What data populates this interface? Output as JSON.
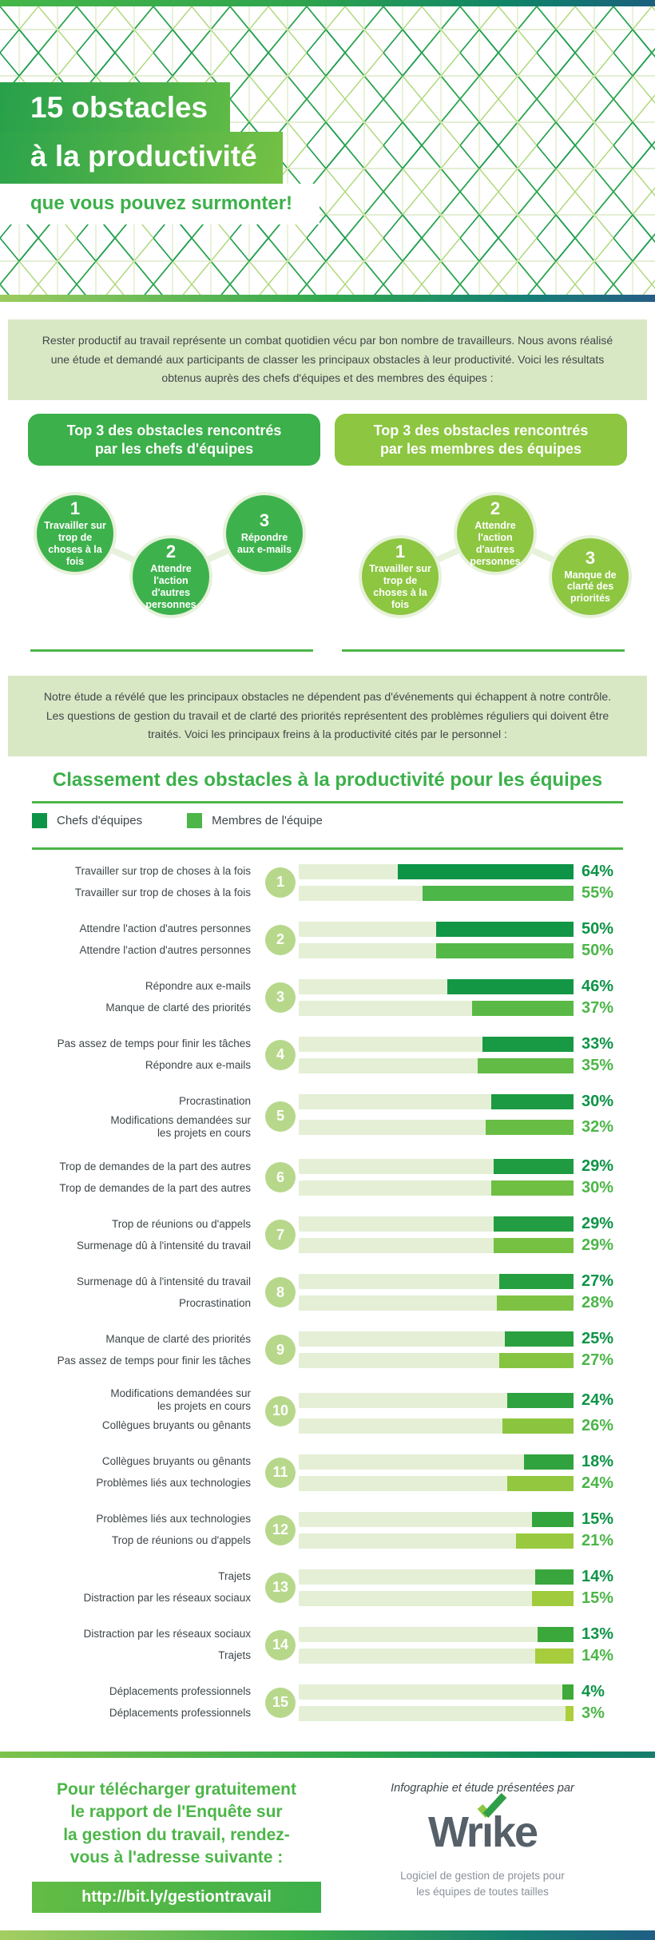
{
  "header": {
    "title_lines": [
      "15 obstacles",
      "à la productivité"
    ],
    "subtitle": "que vous pouvez surmonter!"
  },
  "intro_text": "Rester productif au travail représente un combat quotidien vécu par bon nombre de travailleurs. Nous avons réalisé une étude et demandé aux participants de classer les principaux obstacles à leur productivité. Voici les résultats obtenus auprès des chefs d'équipes et des membres des équipes :",
  "top3_chefs": {
    "heading_lines": [
      "Top 3 des obstacles rencontrés",
      "par les chefs d'équipes"
    ],
    "items": [
      {
        "rank": "1",
        "label": "Travailler sur trop de choses à la fois"
      },
      {
        "rank": "2",
        "label": "Attendre l'action d'autres personnes"
      },
      {
        "rank": "3",
        "label": "Répondre aux e-mails"
      }
    ]
  },
  "top3_membres": {
    "heading_lines": [
      "Top 3 des obstacles rencontrés",
      "par les membres des équipes"
    ],
    "items": [
      {
        "rank": "1",
        "label": "Travailler sur trop de choses à la fois"
      },
      {
        "rank": "2",
        "label": "Attendre l'action d'autres personnes"
      },
      {
        "rank": "3",
        "label": "Manque de clarté des priorités"
      }
    ]
  },
  "note_text": "Notre étude a révélé que les principaux obstacles ne dépendent pas d'événements qui échappent à notre contrôle. Les questions de gestion du travail et de clarté des priorités représentent des problèmes réguliers qui doivent être traités. Voici les principaux freins à la productivité cités par le personnel :",
  "chart_data": {
    "type": "bar",
    "orientation": "horizontal",
    "bar_anchor": "right",
    "value_axis_max": 100,
    "value_suffix": "%",
    "title": "Classement des obstacles à la productivité pour les équipes",
    "legend": [
      {
        "label": "Chefs d'équipes",
        "color": "#0E9447"
      },
      {
        "label": "Membres de l'équipe",
        "color": "#4CB648"
      }
    ],
    "colors": {
      "track": "#E4EFD6",
      "chef_top": "#0D9447",
      "chef_bottom": "#3FA93A",
      "membre_top": "#4CB648",
      "membre_bottom": "#AECE3B",
      "chef_pct_text": "#0E9447",
      "membre_pct_text": "#4CB648",
      "badge": "#B7D88B"
    },
    "rows": [
      {
        "rank": "1",
        "chef_label": "Travailler sur trop de choses à la fois",
        "chef_value": 64,
        "membre_label": "Travailler sur trop de choses à la fois",
        "membre_value": 55
      },
      {
        "rank": "2",
        "chef_label": "Attendre l'action d'autres personnes",
        "chef_value": 50,
        "membre_label": "Attendre l'action d'autres personnes",
        "membre_value": 50
      },
      {
        "rank": "3",
        "chef_label": "Répondre aux e-mails",
        "chef_value": 46,
        "membre_label": "Manque de clarté des priorités",
        "membre_value": 37
      },
      {
        "rank": "4",
        "chef_label": "Pas assez de temps pour finir les tâches",
        "chef_value": 33,
        "membre_label": "Répondre aux e-mails",
        "membre_value": 35
      },
      {
        "rank": "5",
        "chef_label": "Procrastination",
        "chef_value": 30,
        "membre_label": "Modifications demandées sur\nles projets en cours",
        "membre_value": 32
      },
      {
        "rank": "6",
        "chef_label": "Trop de demandes de la part des autres",
        "chef_value": 29,
        "membre_label": "Trop de demandes de la part des autres",
        "membre_value": 30
      },
      {
        "rank": "7",
        "chef_label": "Trop de réunions ou d'appels",
        "chef_value": 29,
        "membre_label": "Surmenage dû à l'intensité du travail",
        "membre_value": 29
      },
      {
        "rank": "8",
        "chef_label": "Surmenage dû à l'intensité du travail",
        "chef_value": 27,
        "membre_label": "Procrastination",
        "membre_value": 28
      },
      {
        "rank": "9",
        "chef_label": "Manque de clarté des priorités",
        "chef_value": 25,
        "membre_label": "Pas assez de temps pour finir les tâches",
        "membre_value": 27
      },
      {
        "rank": "10",
        "chef_label": "Modifications demandées sur\nles projets en cours",
        "chef_value": 24,
        "membre_label": "Collègues bruyants ou gênants",
        "membre_value": 26
      },
      {
        "rank": "11",
        "chef_label": "Collègues bruyants ou gênants",
        "chef_value": 18,
        "membre_label": "Problèmes liés aux technologies",
        "membre_value": 24
      },
      {
        "rank": "12",
        "chef_label": "Problèmes liés aux technologies",
        "chef_value": 15,
        "membre_label": "Trop de réunions ou d'appels",
        "membre_value": 21
      },
      {
        "rank": "13",
        "chef_label": "Trajets",
        "chef_value": 14,
        "membre_label": "Distraction par les réseaux sociaux",
        "membre_value": 15
      },
      {
        "rank": "14",
        "chef_label": "Distraction par les réseaux sociaux",
        "chef_value": 13,
        "membre_label": "Trajets",
        "membre_value": 14
      },
      {
        "rank": "15",
        "chef_label": "Déplacements professionnels",
        "chef_value": 4,
        "membre_label": "Déplacements professionnels",
        "membre_value": 3
      }
    ]
  },
  "footer": {
    "cta_lines": [
      "Pour télécharger gratuitement",
      "le rapport de l'Enquête sur",
      "la gestion du travail, rendez-",
      "vous à l'adresse suivante :"
    ],
    "url": "http://bit.ly/gestiontravail",
    "presented_by": "Infographie et étude présentées par",
    "brand": "Wrike",
    "brand_parts": {
      "pre": "Wr",
      "i": "ı",
      "post": "ke"
    },
    "tagline_lines": [
      "Logiciel de gestion de projets pour",
      "les équipes de toutes tailles"
    ]
  }
}
